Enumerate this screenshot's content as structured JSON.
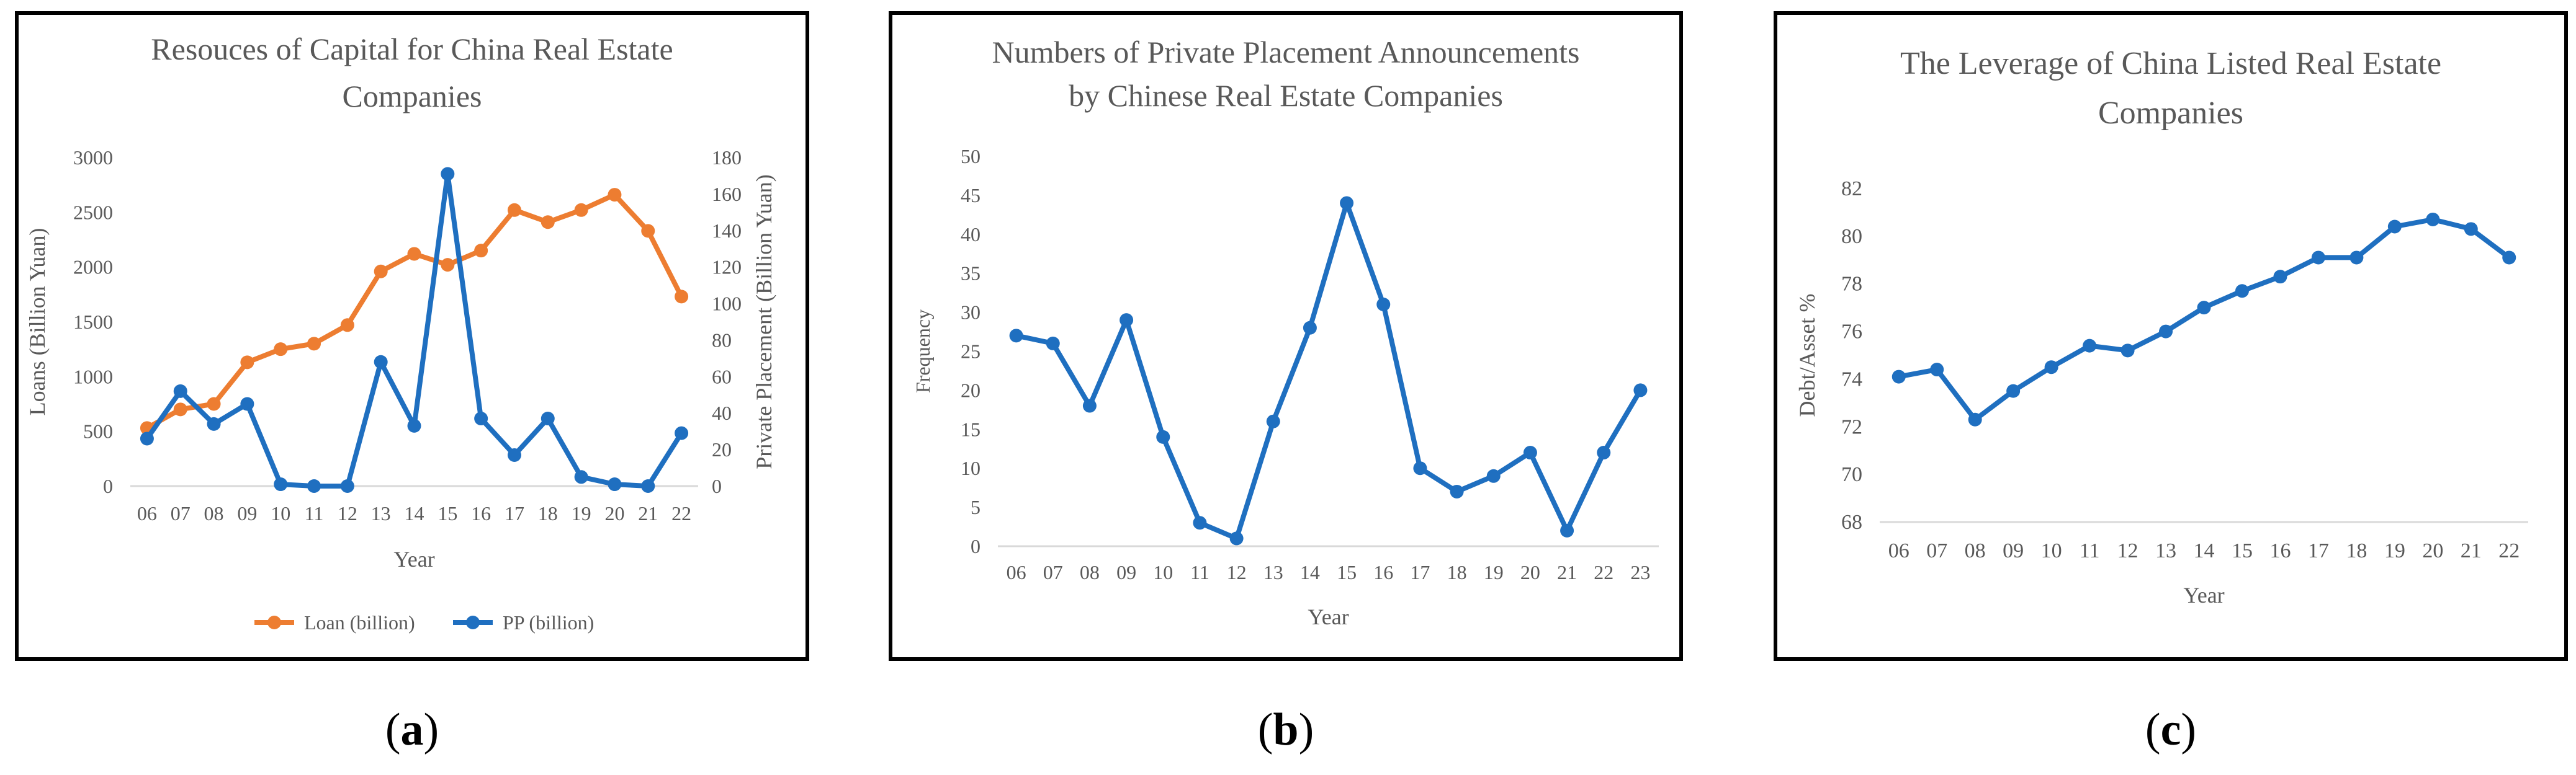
{
  "captions": {
    "a_open": "(",
    "a_letter": "a",
    "a_close": ")",
    "b_open": "(",
    "b_letter": "b",
    "b_close": ")",
    "c_open": "(",
    "c_letter": "c",
    "c_close": ")"
  },
  "chart_data": [
    {
      "id": "a",
      "type": "line",
      "title": "Resouces of Capital for China Real Estate Companies",
      "title_lines": [
        "Resouces of Capital for China Real Estate",
        "Companies"
      ],
      "xlabel": "Year",
      "ylabel": "Loans (Billion Yuan)",
      "y2label": "Private Placement (Billion Yuan)",
      "categories": [
        "06",
        "07",
        "08",
        "09",
        "10",
        "11",
        "12",
        "13",
        "14",
        "15",
        "16",
        "17",
        "18",
        "19",
        "20",
        "21",
        "22"
      ],
      "ylim": [
        0,
        3000
      ],
      "yticks": [
        "0",
        "500",
        "1000",
        "1500",
        "2000",
        "2500",
        "3000"
      ],
      "y2lim": [
        0,
        180
      ],
      "y2ticks": [
        "0",
        "20",
        "40",
        "60",
        "80",
        "100",
        "120",
        "140",
        "160",
        "180"
      ],
      "legend_position": "bottom",
      "series": [
        {
          "name": "Loan  (billion)",
          "axis": "left",
          "color": "#ED7D31",
          "values": [
            530,
            700,
            750,
            1130,
            1250,
            1300,
            1470,
            1960,
            2120,
            2020,
            2150,
            2520,
            2410,
            2520,
            2660,
            2330,
            1730
          ]
        },
        {
          "name": "PP  (billion)",
          "axis": "right",
          "color": "#1F6FC0",
          "values": [
            26,
            52,
            34,
            45,
            1,
            0,
            0,
            68,
            33,
            171,
            37,
            17,
            37,
            5,
            1,
            0,
            29
          ]
        }
      ]
    },
    {
      "id": "b",
      "type": "line",
      "title": "Numbers of Private Placement Announcements by Chinese Real Estate Companies",
      "title_lines": [
        "Numbers of Private Placement Announcements",
        "by Chinese Real Estate Companies"
      ],
      "xlabel": "Year",
      "ylabel": "Frequency",
      "categories": [
        "06",
        "07",
        "08",
        "09",
        "10",
        "11",
        "12",
        "13",
        "14",
        "15",
        "16",
        "17",
        "18",
        "19",
        "20",
        "21",
        "22",
        "23"
      ],
      "ylim": [
        0,
        50
      ],
      "yticks": [
        "0",
        "5",
        "10",
        "15",
        "20",
        "25",
        "30",
        "35",
        "40",
        "45",
        "50"
      ],
      "series": [
        {
          "color": "#1F6FC0",
          "values": [
            27,
            26,
            18,
            29,
            14,
            3,
            1,
            16,
            28,
            44,
            31,
            10,
            7,
            9,
            12,
            2,
            12,
            20
          ]
        }
      ]
    },
    {
      "id": "c",
      "type": "line",
      "title": "The Leverage of China Listed Real Estate Companies",
      "title_lines": [
        "The Leverage of China Listed Real Estate",
        "Companies"
      ],
      "xlabel": "Year",
      "ylabel": "Debt/Asset %",
      "categories": [
        "06",
        "07",
        "08",
        "09",
        "10",
        "11",
        "12",
        "13",
        "14",
        "15",
        "16",
        "17",
        "18",
        "19",
        "20",
        "21",
        "22"
      ],
      "ylim": [
        68,
        82
      ],
      "yticks": [
        "68",
        "70",
        "72",
        "74",
        "76",
        "78",
        "80",
        "82"
      ],
      "series": [
        {
          "color": "#1F6FC0",
          "values": [
            74.1,
            74.4,
            72.3,
            73.5,
            74.5,
            75.4,
            75.2,
            76.0,
            77.0,
            77.7,
            78.3,
            79.1,
            79.1,
            80.4,
            80.7,
            80.3,
            79.1
          ]
        }
      ]
    }
  ]
}
